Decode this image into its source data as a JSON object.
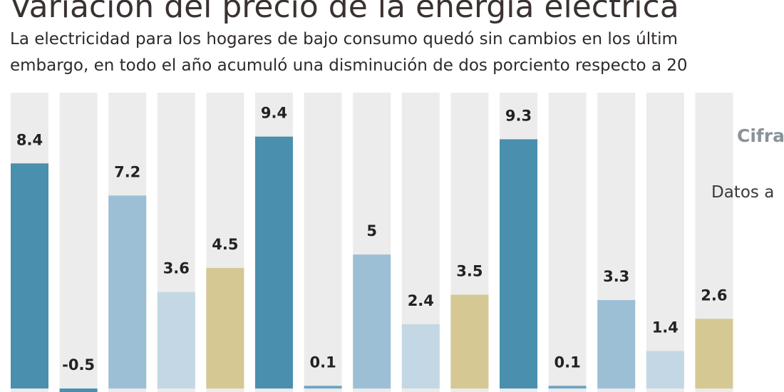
{
  "chart_data": {
    "type": "bar",
    "title": "Variación del precio de la energía eléctrica",
    "subtitle": [
      "La electricidad para los hogares de bajo consumo quedó sin cambios en los últim",
      "embargo, en todo el año acumuló una disminución de dos porciento respecto a 20"
    ],
    "annotations": [
      "Cifras e",
      "Datos a"
    ],
    "values": [
      8.4,
      -0.5,
      7.2,
      3.6,
      4.5,
      9.4,
      0.1,
      5,
      2.4,
      3.5,
      9.3,
      0.1,
      3.3,
      1.4,
      2.6
    ],
    "colors": [
      "#4a8fae",
      "#4a8fae",
      "#9dbfd5",
      "#c3d8e4",
      "#d6c892",
      "#4a8fae",
      "#6fa3c0",
      "#9dbfd5",
      "#c3d8e4",
      "#d6c892",
      "#4a8fae",
      "#6fa3c0",
      "#9dbfd5",
      "#c3d8e4",
      "#d6c892"
    ],
    "ylim": [
      -0.13,
      11.04
    ]
  }
}
